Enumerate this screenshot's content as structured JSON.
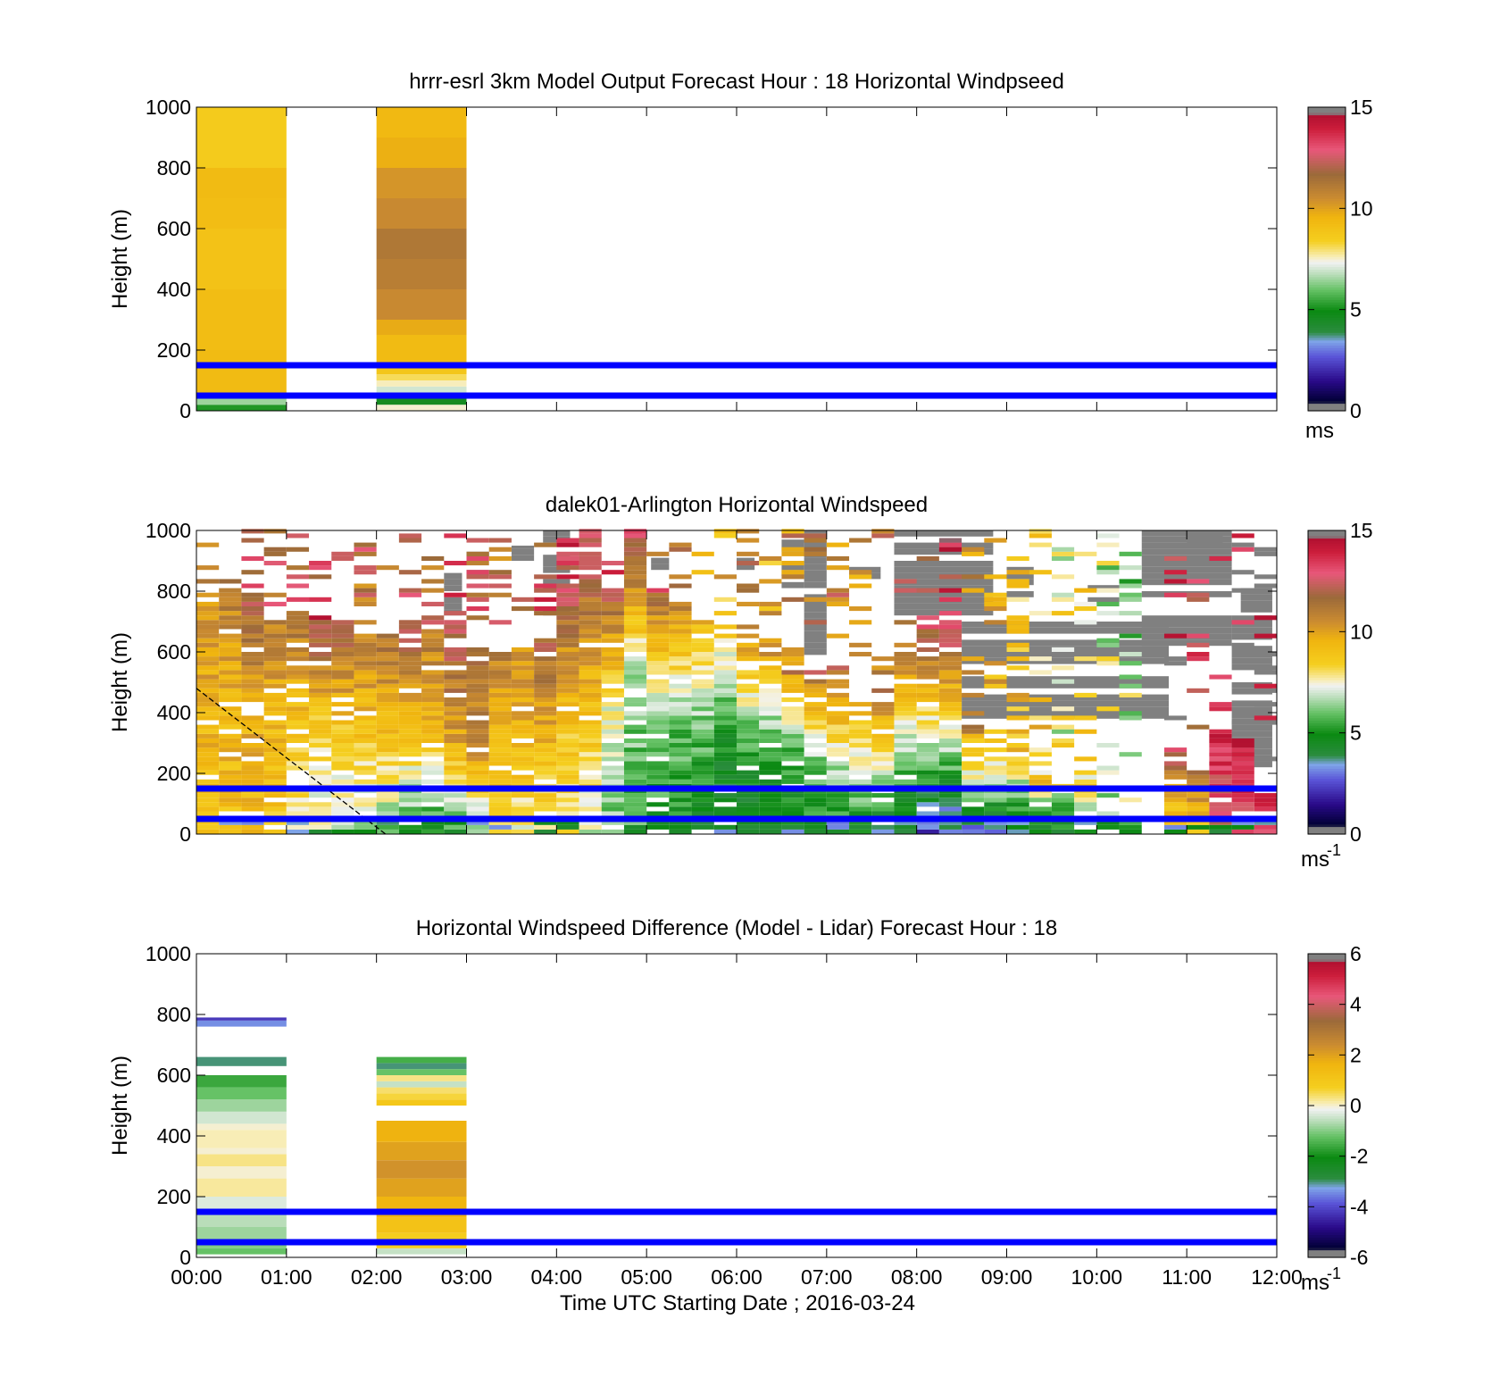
{
  "figure": {
    "xlabel": "Time UTC  Starting Date ; 2016-03-24",
    "xticks": [
      "00:00",
      "01:00",
      "02:00",
      "03:00",
      "04:00",
      "05:00",
      "06:00",
      "07:00",
      "08:00",
      "09:00",
      "10:00",
      "11:00",
      "12:00"
    ]
  },
  "chart_data": [
    {
      "type": "heatmap",
      "title": "hrrr-esrl 3km Model Output   Forecast Hour : 18 Horizontal Windpseed",
      "ylabel": "Height (m)",
      "xlim": [
        0,
        12
      ],
      "ylim": [
        0,
        1000
      ],
      "yticks": [
        0,
        200,
        400,
        600,
        800,
        1000
      ],
      "colorbar": {
        "min": 0,
        "max": 15,
        "ticks": [
          0,
          5,
          10,
          15
        ],
        "unit": "ms",
        "unit_exp": ""
      },
      "reference_lines_m": [
        50,
        150
      ],
      "reference_line_color": "#0000ff",
      "columns": [
        {
          "t0": 0.0,
          "t1": 1.0,
          "cells": [
            [
              0,
              20,
              5.2
            ],
            [
              20,
              40,
              6.5
            ],
            [
              40,
              60,
              7.3
            ],
            [
              60,
              200,
              9.3
            ],
            [
              200,
              400,
              9.2
            ],
            [
              400,
              600,
              9.0
            ],
            [
              600,
              700,
              9.2
            ],
            [
              700,
              800,
              9.3
            ],
            [
              800,
              1000,
              8.6
            ]
          ]
        },
        {
          "t0": 2.0,
          "t1": 3.0,
          "cells": [
            [
              0,
              20,
              7.5
            ],
            [
              20,
              40,
              4.6
            ],
            [
              40,
              60,
              6.2
            ],
            [
              60,
              80,
              7.0
            ],
            [
              80,
              100,
              7.6
            ],
            [
              100,
              120,
              8.1
            ],
            [
              120,
              150,
              8.8
            ],
            [
              150,
              250,
              9.3
            ],
            [
              250,
              300,
              9.8
            ],
            [
              300,
              400,
              10.6
            ],
            [
              400,
              500,
              11.0
            ],
            [
              500,
              600,
              11.2
            ],
            [
              600,
              700,
              10.6
            ],
            [
              700,
              800,
              10.3
            ],
            [
              800,
              900,
              9.7
            ],
            [
              900,
              1000,
              9.4
            ]
          ]
        }
      ]
    },
    {
      "type": "heatmap",
      "title": "dalek01-Arlington  Horizontal Windspeed",
      "ylabel": "Height (m)",
      "xlim": [
        0,
        12
      ],
      "ylim": [
        0,
        1000
      ],
      "yticks": [
        0,
        200,
        400,
        600,
        800,
        1000
      ],
      "colorbar": {
        "min": 0,
        "max": 15,
        "ticks": [
          0,
          5,
          10,
          15
        ],
        "unit": "ms",
        "unit_exp": "-1"
      },
      "reference_lines_m": [
        50,
        150
      ],
      "reference_line_color": "#0000ff",
      "dashed_line": [
        [
          0,
          480
        ],
        [
          2.1,
          0
        ]
      ],
      "column_width_h": 0.25,
      "profiles": [
        {
          "t": 0.0,
          "low": 9.0,
          "mid": 9.5,
          "high": 10.5,
          "top": 760,
          "fill": 0.55
        },
        {
          "t": 0.25,
          "low": 9.0,
          "mid": 9.5,
          "high": 11.0,
          "top": 800,
          "fill": 0.55
        },
        {
          "t": 0.5,
          "low": 9.0,
          "mid": 9.8,
          "high": 12.0,
          "top": 780,
          "fill": 0.5
        },
        {
          "t": 0.75,
          "low": 8.6,
          "mid": 9.3,
          "high": 11.0,
          "top": 700,
          "fill": 0.5
        },
        {
          "t": 1.0,
          "low": 7.5,
          "mid": 9.0,
          "high": 11.5,
          "top": 720,
          "fill": 0.5
        },
        {
          "t": 1.25,
          "low": 7.0,
          "mid": 8.5,
          "high": 12.5,
          "top": 690,
          "fill": 0.45
        },
        {
          "t": 1.5,
          "low": 6.8,
          "mid": 8.8,
          "high": 12.0,
          "top": 680,
          "fill": 0.45
        },
        {
          "t": 1.75,
          "low": 6.5,
          "mid": 9.0,
          "high": 11.0,
          "top": 650,
          "fill": 0.45
        },
        {
          "t": 2.0,
          "low": 6.2,
          "mid": 9.0,
          "high": 11.5,
          "top": 650,
          "fill": 0.45
        },
        {
          "t": 2.25,
          "low": 5.5,
          "mid": 9.0,
          "high": 12.5,
          "top": 690,
          "fill": 0.45
        },
        {
          "t": 2.5,
          "low": 5.0,
          "mid": 9.3,
          "high": 11.0,
          "top": 650,
          "fill": 0.45
        },
        {
          "t": 2.75,
          "low": 5.5,
          "mid": 10.0,
          "high": 12.0,
          "top": 600,
          "fill": 0.5
        },
        {
          "t": 3.0,
          "low": 6.0,
          "mid": 10.5,
          "high": 11.5,
          "top": 560,
          "fill": 0.5
        },
        {
          "t": 3.25,
          "low": 8.0,
          "mid": 9.5,
          "high": 11.0,
          "top": 590,
          "fill": 0.5
        },
        {
          "t": 3.5,
          "low": 7.5,
          "mid": 9.5,
          "high": 10.5,
          "top": 600,
          "fill": 0.5
        },
        {
          "t": 3.75,
          "low": 8.0,
          "mid": 9.5,
          "high": 12.0,
          "top": 640,
          "fill": 0.5
        },
        {
          "t": 4.0,
          "low": 8.0,
          "mid": 9.0,
          "high": 12.5,
          "top": 820,
          "fill": 0.5
        },
        {
          "t": 4.25,
          "low": 7.0,
          "mid": 9.5,
          "high": 13.0,
          "top": 1000,
          "fill": 0.45
        },
        {
          "t": 4.5,
          "low": 6.0,
          "mid": 7.5,
          "high": 12.0,
          "top": 800,
          "fill": 0.45
        },
        {
          "t": 4.75,
          "low": 5.5,
          "mid": 6.5,
          "high": 13.0,
          "top": 1000,
          "fill": 0.45
        },
        {
          "t": 5.0,
          "low": 5.0,
          "mid": 6.2,
          "high": 11.5,
          "top": 780,
          "fill": 0.45
        },
        {
          "t": 5.25,
          "low": 5.0,
          "mid": 6.0,
          "high": 11.0,
          "top": 760,
          "fill": 0.45
        },
        {
          "t": 5.5,
          "low": 4.5,
          "mid": 6.0,
          "high": 9.5,
          "top": 700,
          "fill": 0.45
        },
        {
          "t": 5.75,
          "low": 4.0,
          "mid": 5.0,
          "high": 8.5,
          "top": 680,
          "fill": 0.45
        },
        {
          "t": 6.0,
          "low": 4.2,
          "mid": 5.5,
          "high": 10.0,
          "top": 620,
          "fill": 0.4
        },
        {
          "t": 6.25,
          "low": 4.5,
          "mid": 5.2,
          "high": 9.0,
          "top": 550,
          "fill": 0.4
        },
        {
          "t": 6.5,
          "low": 4.5,
          "mid": 5.5,
          "high": 10.0,
          "top": 520,
          "fill": 0.4
        },
        {
          "t": 6.75,
          "low": 4.5,
          "mid": 6.5,
          "high": 11.0,
          "top": 500,
          "fill": 0.4
        },
        {
          "t": 7.0,
          "low": 4.5,
          "mid": 7.0,
          "high": 10.5,
          "top": 460,
          "fill": 0.4
        },
        {
          "t": 7.25,
          "low": 4.5,
          "mid": 7.2,
          "high": 10.0,
          "top": 430,
          "fill": 0.4
        },
        {
          "t": 7.5,
          "low": 4.0,
          "mid": 7.5,
          "high": 10.5,
          "top": 440,
          "fill": 0.4
        },
        {
          "t": 7.75,
          "low": 3.5,
          "mid": 7.3,
          "high": 11.5,
          "top": 640,
          "fill": 0.45
        },
        {
          "t": 8.0,
          "low": 2.5,
          "mid": 7.5,
          "high": 12.5,
          "top": 680,
          "fill": 0.45
        },
        {
          "t": 8.25,
          "low": 2.5,
          "mid": 7.8,
          "high": 13.0,
          "top": 690,
          "fill": 0.45
        },
        {
          "t": 8.5,
          "low": 3.0,
          "mid": 7.0,
          "high": 9.5,
          "top": 320,
          "fill": 0.5
        },
        {
          "t": 8.75,
          "low": 3.2,
          "mid": 6.5,
          "high": 9.0,
          "top": 300,
          "fill": 0.5
        },
        {
          "t": 9.0,
          "low": 4.0,
          "mid": 6.0,
          "high": 8.5,
          "top": 240,
          "fill": 0.5
        },
        {
          "t": 9.25,
          "low": 4.5,
          "mid": 5.0,
          "high": 8.0,
          "top": 140,
          "fill": 0.5
        },
        {
          "t": 9.5,
          "low": 4.8,
          "mid": 5.2,
          "high": 7.0,
          "top": 130,
          "fill": 0.5
        },
        {
          "t": 9.75,
          "low": 5.5,
          "mid": 6.5,
          "high": 7.5,
          "top": 110,
          "fill": 0.5
        },
        {
          "t": 10.0,
          "low": 4.8,
          "mid": 5.5,
          "high": 6.5,
          "top": 60,
          "fill": 0.5
        },
        {
          "t": 10.25,
          "low": 4.5,
          "mid": 5.0,
          "high": 6.0,
          "top": 40,
          "fill": 0.5
        },
        {
          "t": 10.75,
          "low": 8.5,
          "mid": 10.0,
          "high": 13.0,
          "top": 280,
          "fill": 0.35
        },
        {
          "t": 11.0,
          "low": 9.0,
          "mid": 10.0,
          "high": 12.0,
          "top": 200,
          "fill": 0.3
        },
        {
          "t": 11.25,
          "low": 12.5,
          "mid": 13.0,
          "high": 14.0,
          "top": 340,
          "fill": 0.35
        },
        {
          "t": 11.5,
          "low": 13.0,
          "mid": 13.5,
          "high": 14.0,
          "top": 310,
          "fill": 0.35
        },
        {
          "t": 11.75,
          "low": 13.5,
          "mid": 14.0,
          "high": 14.5,
          "top": 120,
          "fill": 0.3
        }
      ],
      "saturated": [
        {
          "t0": 2.75,
          "t1": 2.95,
          "h0": 720,
          "h1": 880
        },
        {
          "t0": 3.0,
          "t1": 3.25,
          "h0": 850,
          "h1": 930
        },
        {
          "t0": 3.5,
          "t1": 3.75,
          "h0": 880,
          "h1": 950
        },
        {
          "t0": 3.85,
          "t1": 4.15,
          "h0": 720,
          "h1": 1000
        },
        {
          "t0": 4.75,
          "t1": 4.95,
          "h0": 960,
          "h1": 1000
        },
        {
          "t0": 5.05,
          "t1": 5.25,
          "h0": 870,
          "h1": 910
        },
        {
          "t0": 6.0,
          "t1": 6.2,
          "h0": 870,
          "h1": 910
        },
        {
          "t0": 6.5,
          "t1": 6.75,
          "h0": 790,
          "h1": 1000
        },
        {
          "t0": 6.75,
          "t1": 7.0,
          "h0": 590,
          "h1": 1000
        },
        {
          "t0": 7.25,
          "t1": 7.6,
          "h0": 820,
          "h1": 900
        },
        {
          "t0": 7.75,
          "t1": 8.85,
          "h0": 720,
          "h1": 1000
        },
        {
          "t0": 8.5,
          "t1": 10.8,
          "h0": 380,
          "h1": 700
        },
        {
          "t0": 9.0,
          "t1": 9.3,
          "h0": 780,
          "h1": 890
        },
        {
          "t0": 9.9,
          "t1": 10.25,
          "h0": 760,
          "h1": 820
        },
        {
          "t0": 10.5,
          "t1": 11.5,
          "h0": 600,
          "h1": 1000
        },
        {
          "t0": 11.0,
          "t1": 11.4,
          "h0": 930,
          "h1": 1000
        },
        {
          "t0": 11.5,
          "t1": 11.95,
          "h0": 220,
          "h1": 720
        },
        {
          "t0": 11.6,
          "t1": 11.95,
          "h0": 730,
          "h1": 820
        }
      ]
    },
    {
      "type": "heatmap",
      "title": "Horizontal Windspeed Difference (Model - Lidar) Forecast Hour : 18",
      "ylabel": "Height (m)",
      "xlim": [
        0,
        12
      ],
      "ylim": [
        0,
        1000
      ],
      "yticks": [
        0,
        200,
        400,
        600,
        800,
        1000
      ],
      "colorbar": {
        "min": -6,
        "max": 6,
        "ticks": [
          -6,
          -4,
          -2,
          0,
          2,
          4,
          6
        ],
        "unit": "ms",
        "unit_exp": "-1"
      },
      "reference_lines_m": [
        50,
        150
      ],
      "reference_line_color": "#0000ff",
      "columns": [
        {
          "t0": 0.0,
          "t1": 1.0,
          "cells": [
            [
              10,
              30,
              -1.2
            ],
            [
              30,
              60,
              -1.0
            ],
            [
              60,
              100,
              -0.8
            ],
            [
              100,
              150,
              -0.6
            ],
            [
              150,
              200,
              -0.3
            ],
            [
              200,
              260,
              0.2
            ],
            [
              260,
              300,
              0.0
            ],
            [
              300,
              340,
              0.3
            ],
            [
              340,
              360,
              0.0
            ],
            [
              360,
              420,
              0.1
            ],
            [
              420,
              440,
              0.0
            ],
            [
              440,
              480,
              -0.4
            ],
            [
              480,
              520,
              -0.8
            ],
            [
              520,
              560,
              -1.2
            ],
            [
              560,
              600,
              -1.6
            ],
            [
              630,
              660,
              -3.0
            ],
            [
              760,
              780,
              -3.4
            ],
            [
              780,
              790,
              -4.2
            ]
          ]
        },
        {
          "t0": 2.0,
          "t1": 3.0,
          "cells": [
            [
              10,
              30,
              -0.5
            ],
            [
              30,
              80,
              0.8
            ],
            [
              80,
              130,
              1.2
            ],
            [
              130,
              200,
              1.6
            ],
            [
              200,
              260,
              2.0
            ],
            [
              260,
              320,
              2.3
            ],
            [
              320,
              380,
              2.0
            ],
            [
              380,
              450,
              1.7
            ],
            [
              500,
              520,
              1.0
            ],
            [
              520,
              540,
              0.6
            ],
            [
              540,
              560,
              0.4
            ],
            [
              560,
              580,
              -0.5
            ],
            [
              580,
              600,
              0.3
            ],
            [
              600,
              620,
              -1.2
            ],
            [
              620,
              640,
              -3.0
            ],
            [
              640,
              660,
              -1.5
            ]
          ]
        }
      ]
    }
  ]
}
